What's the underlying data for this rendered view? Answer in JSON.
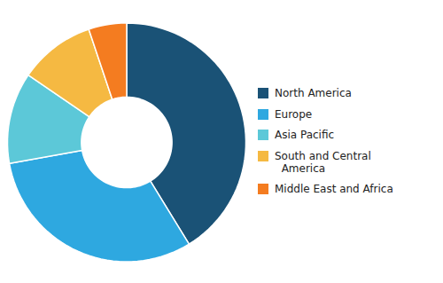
{
  "chart_data": {
    "type": "donut",
    "categories": [
      "North America",
      "Europe",
      "Asia Pacific",
      "South and Central\n  America",
      "Middle East and Africa"
    ],
    "values": [
      40,
      30,
      12,
      10,
      5
    ],
    "colors": [
      "#1a5276",
      "#2ea8e0",
      "#5cc8d8",
      "#f5b942",
      "#f47c20"
    ],
    "legend": "right"
  }
}
